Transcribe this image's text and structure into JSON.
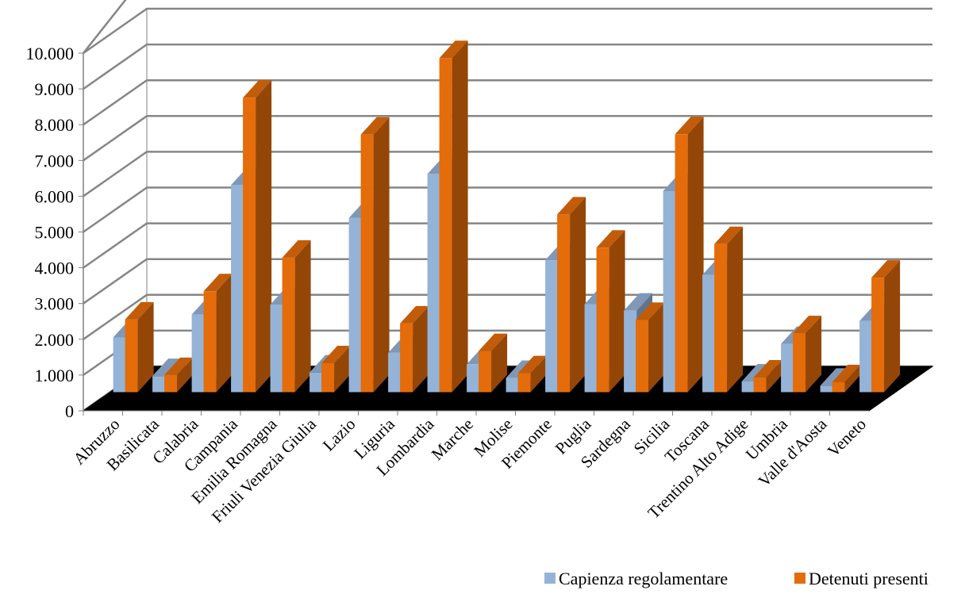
{
  "chart_data": {
    "type": "bar",
    "style": "3d-clustered-column",
    "title": "",
    "xlabel": "",
    "ylabel": "",
    "ylim": [
      0,
      10000
    ],
    "grid": true,
    "legend_position": "bottom-right",
    "y_ticks": [
      {
        "value": 0,
        "label": "0"
      },
      {
        "value": 1000,
        "label": "1.000"
      },
      {
        "value": 2000,
        "label": "2.000"
      },
      {
        "value": 3000,
        "label": "3.000"
      },
      {
        "value": 4000,
        "label": "4.000"
      },
      {
        "value": 5000,
        "label": "5.000"
      },
      {
        "value": 6000,
        "label": "6.000"
      },
      {
        "value": 7000,
        "label": "7.000"
      },
      {
        "value": 8000,
        "label": "8.000"
      },
      {
        "value": 9000,
        "label": "9.000"
      },
      {
        "value": 10000,
        "label": "10.000"
      }
    ],
    "categories": [
      "Abruzzo",
      "Basilicata",
      "Calabria",
      "Campania",
      "Emilia Romagna",
      "Friuli Venezia Giulia",
      "Lazio",
      "Liguria",
      "Lombardia",
      "Marche",
      "Molise",
      "Piemonte",
      "Puglia",
      "Sardegna",
      "Sicilia",
      "Toscana",
      "Trentino Alto Adige",
      "Umbria",
      "Valle d'Aosta",
      "Veneto"
    ],
    "series": [
      {
        "name": "Capienza regolamentare",
        "color": "#95B3D7",
        "values": [
          1530,
          450,
          2170,
          5790,
          2450,
          550,
          4870,
          1100,
          6100,
          780,
          400,
          3690,
          2460,
          2280,
          5620,
          3280,
          300,
          1350,
          180,
          1990
        ]
      },
      {
        "name": "Detenuti presenti",
        "color": "#E46C0A",
        "values": [
          2030,
          480,
          2820,
          8230,
          3760,
          810,
          7200,
          1920,
          9340,
          1150,
          530,
          4970,
          4040,
          2020,
          7210,
          4140,
          410,
          1650,
          280,
          3200
        ]
      }
    ]
  }
}
